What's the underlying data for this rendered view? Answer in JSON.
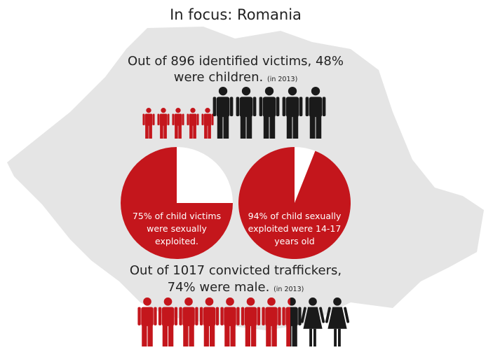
{
  "title": "In focus: Romania",
  "victims": {
    "line1": "Out of 896 identified victims, 48%",
    "line2": "were children.",
    "note": "(in 2013)"
  },
  "pies": [
    {
      "value": 75,
      "label": [
        "75% of child victims",
        "were sexually",
        "exploited."
      ]
    },
    {
      "value": 94,
      "label": [
        "94% of child sexually",
        "exploited were 14-17",
        "years old"
      ]
    }
  ],
  "traffickers": {
    "line1": "Out of 1017 convicted traffickers,",
    "line2": "74% were male.",
    "note": "(in 2013)"
  }
}
